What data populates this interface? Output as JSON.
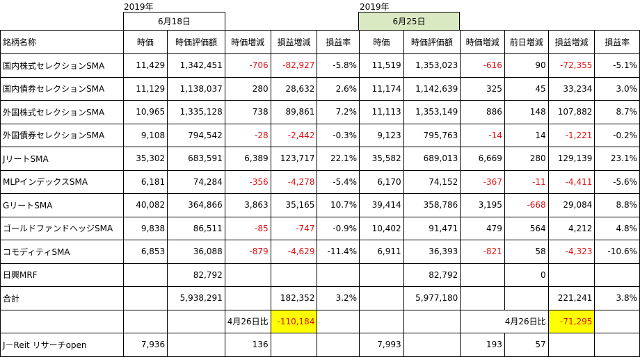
{
  "left_block": {
    "year": "2019年",
    "date": "6月18日"
  },
  "right_block": {
    "year": "2019年",
    "date": "6月25日"
  },
  "colors": {
    "negative": "#e01010",
    "highlight": "#ffff00",
    "date_header_bg": "#d9eac2"
  },
  "headers": [
    "銘柄名称",
    "時価",
    "時価評価額",
    "時価増減",
    "損益増減",
    "損益率",
    "時価",
    "時価評価額",
    "時価増減",
    "前日増減",
    "損益増減",
    "損益率"
  ],
  "rows": [
    {
      "name": "国内株式セレクションSMA",
      "v": [
        "11,429",
        "1,342,451",
        "-706",
        "-82,927",
        "-5.8%",
        "11,519",
        "1,353,023",
        "-616",
        "90",
        "-72,355",
        "-5.1%"
      ]
    },
    {
      "name": "国内債券セレクションSMA",
      "v": [
        "11,129",
        "1,138,037",
        "280",
        "28,632",
        "2.6%",
        "11,174",
        "1,142,639",
        "325",
        "45",
        "33,234",
        "3.0%"
      ]
    },
    {
      "name": "外国株式セレクションSMA",
      "v": [
        "10,965",
        "1,335,128",
        "738",
        "89,861",
        "7.2%",
        "11,113",
        "1,353,149",
        "886",
        "148",
        "107,882",
        "8.7%"
      ]
    },
    {
      "name": "外国債券セレクションSMA",
      "v": [
        "9,108",
        "794,542",
        "-28",
        "-2,442",
        "-0.3%",
        "9,123",
        "795,763",
        "-14",
        "14",
        "-1,221",
        "-0.2%"
      ]
    },
    {
      "name": "JリートSMA",
      "v": [
        "35,302",
        "683,591",
        "6,389",
        "123,717",
        "22.1%",
        "35,582",
        "689,013",
        "6,669",
        "280",
        "129,139",
        "23.1%"
      ]
    },
    {
      "name": "MLPインデックスSMA",
      "v": [
        "6,181",
        "74,284",
        "-356",
        "-4,278",
        "-5.4%",
        "6,170",
        "74,152",
        "-367",
        "-11",
        "-4,411",
        "-5.6%"
      ]
    },
    {
      "name": "GリートSMA",
      "v": [
        "40,082",
        "364,866",
        "3,863",
        "35,165",
        "10.7%",
        "39,414",
        "358,786",
        "3,195",
        "-668",
        "29,084",
        "8.8%"
      ]
    },
    {
      "name": "ゴールドファンドヘッジSMA",
      "v": [
        "9,838",
        "86,511",
        "-85",
        "-747",
        "-0.9%",
        "10,402",
        "91,471",
        "479",
        "564",
        "4,212",
        "4.8%"
      ]
    },
    {
      "name": "コモディティSMA",
      "v": [
        "6,853",
        "36,088",
        "-879",
        "-4,629",
        "-11.4%",
        "6,911",
        "36,393",
        "-821",
        "58",
        "-4,323",
        "-10.6%"
      ]
    },
    {
      "name": "日興MRF",
      "v": [
        "",
        "82,792",
        "",
        "",
        "",
        "",
        "82,792",
        "",
        "0",
        "",
        ""
      ]
    },
    {
      "name": "合計",
      "v": [
        "",
        "5,938,291",
        "",
        "182,352",
        "3.2%",
        "",
        "5,977,180",
        "",
        "",
        "221,241",
        "3.8%"
      ]
    }
  ],
  "comparison": {
    "left_label": "4月26日比",
    "left_value": "-110,184",
    "right_label": "4月26日比",
    "right_value": "-71,295"
  },
  "extra_row": {
    "name": "J－Reit リサーチopen",
    "v": [
      "7,936",
      "",
      "136",
      "",
      "",
      "7,993",
      "",
      "193",
      "57",
      "",
      ""
    ]
  }
}
